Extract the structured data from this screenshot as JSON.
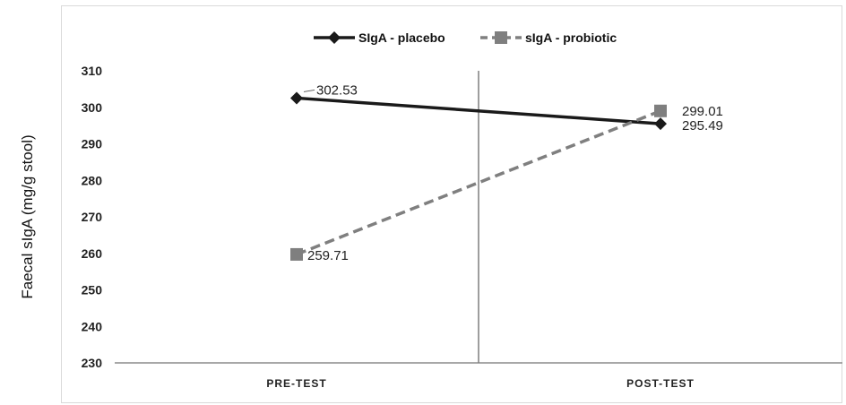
{
  "chart_data": {
    "type": "line",
    "title": "",
    "xlabel": "",
    "ylabel": "Faecal sIgA (mg/g stool)",
    "categories": [
      "PRE-TEST",
      "POST-TEST"
    ],
    "ylim": [
      230,
      310
    ],
    "yticks": [
      230,
      240,
      250,
      260,
      270,
      280,
      290,
      300,
      310
    ],
    "grid": false,
    "legend": "top-center",
    "series": [
      {
        "name": "SIgA - placebo",
        "values": [
          302.53,
          295.49
        ],
        "labels": [
          "302.53",
          "295.49"
        ],
        "color": "#1a1a1a",
        "style": "solid",
        "marker": "diamond"
      },
      {
        "name": "sIgA - probiotic",
        "values": [
          259.71,
          299.01
        ],
        "labels": [
          "259.71",
          "299.01"
        ],
        "color": "#7f7f7f",
        "style": "dashed",
        "marker": "square"
      }
    ]
  }
}
